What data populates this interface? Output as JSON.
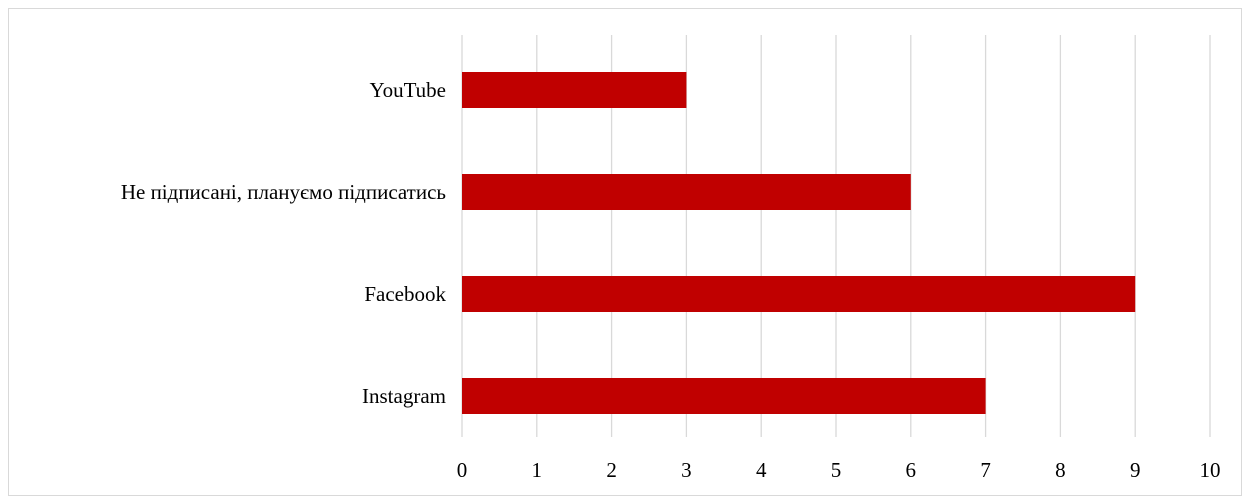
{
  "chart_data": {
    "type": "bar",
    "orientation": "horizontal",
    "categories": [
      "YouTube",
      "Не підписані, плануємо підписатись",
      "Facebook",
      "Instagram"
    ],
    "values": [
      3,
      6,
      9,
      7
    ],
    "xlim": [
      0,
      10
    ],
    "xticks": [
      "0",
      "1",
      "2",
      "3",
      "4",
      "5",
      "6",
      "7",
      "8",
      "9",
      "10"
    ],
    "title": "",
    "xlabel": "",
    "ylabel": "",
    "grid": "vertical",
    "legend": "none",
    "bar_color": "#c00000",
    "grid_color": "#d9d9d9"
  }
}
